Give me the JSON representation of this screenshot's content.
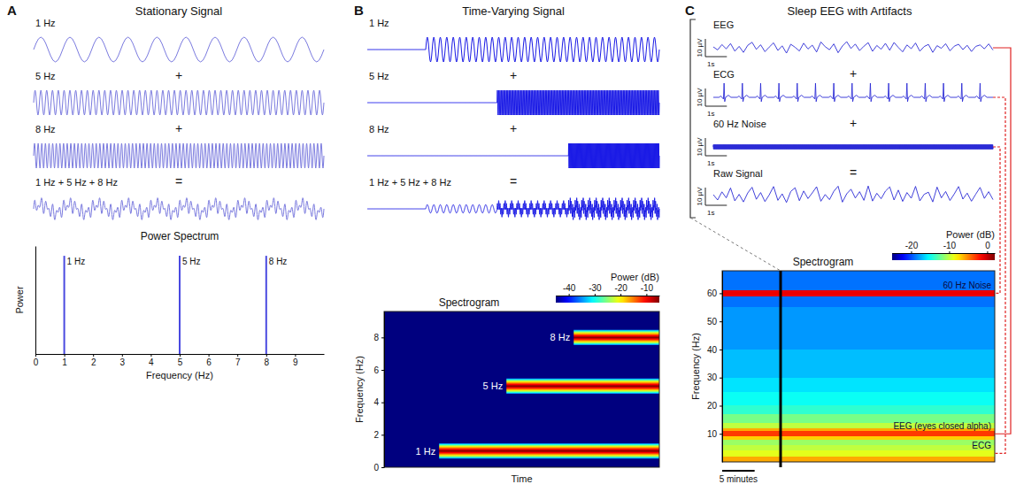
{
  "chart_data": [
    {
      "type": "waveform_sum",
      "letter": "A",
      "title": "Stationary Signal",
      "color": "#7b7bdf",
      "duration": 10,
      "series": [
        {
          "name": "1 Hz",
          "frequency": 1,
          "onset": 0
        },
        {
          "name": "5 Hz",
          "frequency": 5,
          "onset": 0
        },
        {
          "name": "8 Hz",
          "frequency": 8,
          "onset": 0
        }
      ],
      "operators": [
        "+",
        "+",
        "="
      ],
      "sum_label": "1 Hz + 5 Hz + 8 Hz"
    },
    {
      "type": "spectrum",
      "title": "Power Spectrum",
      "x_label": "Frequency (Hz)",
      "y_label": "Power",
      "color": "#4a4ae0",
      "x": [
        1,
        5,
        8
      ],
      "values": [
        1,
        1,
        1
      ],
      "value_labels": [
        "1 Hz",
        "5 Hz",
        "8 Hz"
      ],
      "xlim": [
        0,
        10
      ],
      "xticks": [
        0,
        1,
        2,
        3,
        4,
        5,
        6,
        7,
        8,
        9
      ],
      "ylim": [
        0,
        1.1
      ],
      "tick_labels": "x"
    },
    {
      "type": "waveform_sum",
      "letter": "B",
      "title": "Time-Varying Signal",
      "color": "#1a1ae6",
      "duration": 45,
      "series": [
        {
          "name": "1 Hz",
          "frequency": 1,
          "onset": 9
        },
        {
          "name": "5 Hz",
          "frequency": 5,
          "onset": 20
        },
        {
          "name": "8 Hz",
          "frequency": 8,
          "onset": 31
        }
      ],
      "operators": [
        "+",
        "+",
        "="
      ],
      "sum_label": "1 Hz + 5 Hz + 8 Hz"
    },
    {
      "type": "spectrogram",
      "title": "Spectrogram",
      "x_label": "Time",
      "y_label": "Frequency (Hz)",
      "xlim": [
        0,
        45
      ],
      "ylim": [
        0,
        9.6
      ],
      "yticks": [
        0,
        2,
        4,
        6,
        8
      ],
      "tick_labels": "y",
      "bands": [
        {
          "name": "1 Hz",
          "frequency": 1,
          "onset": 9,
          "power": -5
        },
        {
          "name": "5 Hz",
          "frequency": 5,
          "onset": 20,
          "power": -5
        },
        {
          "name": "8 Hz",
          "frequency": 8,
          "onset": 31,
          "power": -5
        }
      ],
      "background_power": -45,
      "bandwidth": 0.5,
      "colorbar_title": "Power (dB)",
      "colorbar_lim": [
        -45,
        -5
      ],
      "colorbar_ticks": [
        -40,
        -30,
        -20,
        -10
      ]
    },
    {
      "type": "traces",
      "letter": "C",
      "title": "Sleep EEG with Artifacts",
      "color": "#2b2bd6",
      "duration": 13,
      "traces": [
        {
          "name": "EEG",
          "values": [
            0.5,
            -1.2,
            1.8,
            -0.6,
            2.4,
            -1.9,
            0.8,
            -2.6,
            1.4,
            3.1,
            -0.9,
            1.7,
            -2.2,
            0.4,
            2.8,
            -1.5,
            1.1,
            -3.0,
            2.0,
            0.3,
            -1.8,
            2.6,
            -0.7,
            1.5,
            -2.4,
            3.3,
            0.6,
            -1.1,
            2.2,
            -2.8,
            1.0,
            3.5,
            -0.4,
            2.1,
            -1.6,
            0.9,
            2.9,
            -2.0,
            1.3,
            -0.8,
            2.5,
            -1.4,
            3.0,
            0.2,
            -2.3,
            1.6,
            -0.5,
            2.7,
            -1.9,
            0.7,
            1.9,
            -2.6,
            1.2,
            -0.3,
            2.3,
            -1.7,
            0.9,
            2.0,
            -1.0,
            1.4,
            -2.1,
            0.8,
            1.6,
            -0.6,
            2.2,
            -1.3
          ]
        },
        {
          "name": "ECG",
          "beats": [
            0.5,
            1.35,
            2.2,
            3.05,
            3.9,
            4.75,
            5.6,
            6.45,
            7.3,
            8.15,
            9.0,
            9.85,
            10.7,
            11.55,
            12.4
          ],
          "amplitude": 8
        },
        {
          "name": "60 Hz Noise",
          "frequency": 60,
          "amplitude": 1.2
        },
        {
          "name": "Raw Signal",
          "values": [
            1.0,
            -2.0,
            2.6,
            -0.8,
            4.8,
            -2.5,
            1.2,
            -3.1,
            2.0,
            5.2,
            -1.6,
            2.2,
            -2.9,
            0.9,
            5.6,
            -2.2,
            1.5,
            -3.4,
            2.8,
            4.9,
            -2.4,
            3.1,
            -1.2,
            2.0,
            5.5,
            -2.7,
            1.1,
            -1.8,
            2.9,
            5.8,
            -3.2,
            1.5,
            4.1,
            -0.9,
            2.7,
            -2.2,
            5.9,
            -2.6,
            1.8,
            -1.3,
            3.0,
            5.4,
            -2.0,
            3.6,
            -2.8,
            2.2,
            -1.0,
            5.7,
            -2.5,
            1.2,
            2.4,
            -3.1,
            5.3,
            -0.8,
            2.8,
            -2.3,
            1.4,
            5.6,
            -1.5,
            1.9,
            -2.7,
            1.3,
            5.1,
            -1.1,
            2.7,
            -1.8
          ]
        }
      ],
      "operators": [
        "+",
        "+",
        "="
      ],
      "scale_bar": {
        "y": 10,
        "y_label": "10 µV",
        "x": 1,
        "x_label": "1s"
      }
    },
    {
      "type": "spectrogram",
      "title": "Spectrogram",
      "y_label": "Frequency (Hz)",
      "xlim": [
        0,
        42
      ],
      "ylim": [
        0,
        68
      ],
      "yticks": [
        10,
        20,
        30,
        40,
        50,
        60
      ],
      "tick_labels": "y",
      "frequency_bins": [
        0,
        2,
        4,
        6,
        8,
        9,
        11,
        12,
        14,
        17,
        20,
        25,
        30,
        35,
        40,
        45,
        50,
        55,
        59,
        61,
        65,
        68
      ],
      "power": [
        -6,
        -9,
        -10,
        -11,
        -7,
        -3,
        -6,
        -10,
        -12,
        -14,
        -15,
        -16,
        -17,
        -17,
        -18,
        -18,
        -18,
        -19,
        -1,
        -19,
        -19
      ],
      "colorbar_title": "Power (dB)",
      "colorbar_lim": [
        -25,
        2
      ],
      "colorbar_ticks": [
        -20,
        -10,
        0
      ],
      "marker_time": 9,
      "time_bar": 5,
      "time_bar_label": "5 minutes",
      "annotations": [
        {
          "text": "60 Hz Noise",
          "frequency": 60
        },
        {
          "text": "EEG (eyes closed alpha)",
          "frequency": 10
        },
        {
          "text": "ECG",
          "frequency": 3
        }
      ]
    }
  ]
}
